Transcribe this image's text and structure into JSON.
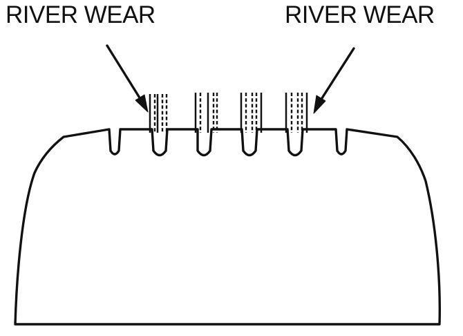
{
  "labels": {
    "left": "RIVER WEAR",
    "right": "RIVER WEAR"
  },
  "colors": {
    "ink": "#111111",
    "background": "#ffffff"
  }
}
